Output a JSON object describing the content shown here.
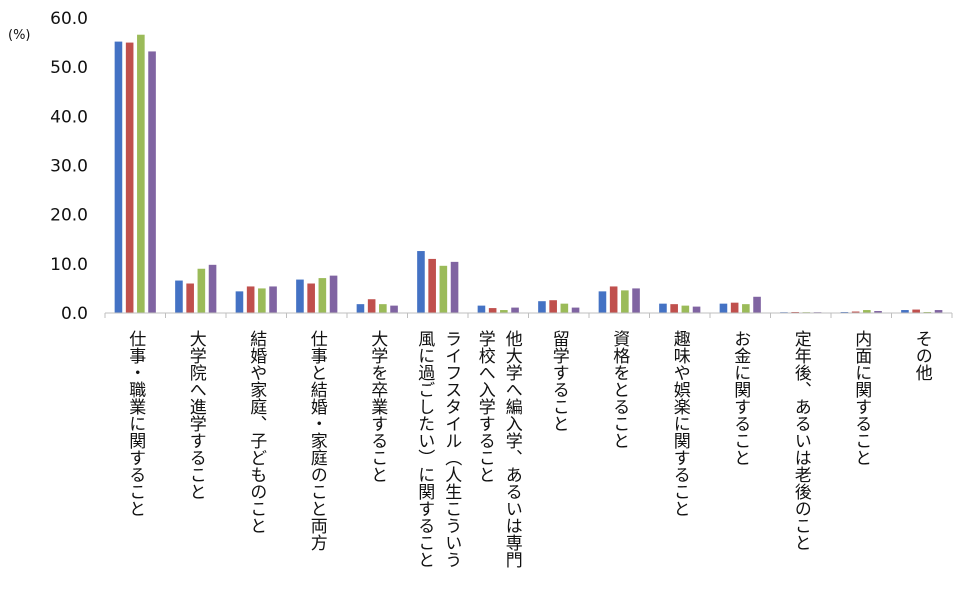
{
  "chart_data": {
    "type": "bar",
    "unit_label": "(%)",
    "ylim": [
      0,
      60
    ],
    "y_ticks": [
      "0.0",
      "10.0",
      "20.0",
      "30.0",
      "40.0",
      "50.0",
      "60.0"
    ],
    "grid": false,
    "legend": "none",
    "categories": [
      [
        "仕事・職業に関すること"
      ],
      [
        "大学院へ進学すること"
      ],
      [
        "結婚や家庭、子どものこと"
      ],
      [
        "仕事と結婚・家庭のこと両方"
      ],
      [
        "大学を卒業すること"
      ],
      [
        "ライフスタイル（人生こういう",
        "風に過ごしたい）に関すること"
      ],
      [
        "他大学へ編入学、あるいは専門",
        "学校へ入学すること"
      ],
      [
        "留学すること"
      ],
      [
        "資格をとること"
      ],
      [
        "趣味や娯楽に関すること"
      ],
      [
        "お金に関すること"
      ],
      [
        "定年後、あるいは老後のこと"
      ],
      [
        "内面に関すること"
      ],
      [
        "その他"
      ]
    ],
    "series": [
      {
        "color": "#4472C4",
        "values": [
          55.2,
          6.6,
          4.4,
          6.8,
          1.8,
          12.6,
          1.5,
          2.4,
          4.4,
          1.9,
          1.9,
          0.1,
          0.2,
          0.6
        ]
      },
      {
        "color": "#C0504D",
        "values": [
          55.0,
          6.0,
          5.4,
          6.0,
          2.8,
          11.0,
          1.0,
          2.6,
          5.4,
          1.8,
          2.1,
          0.2,
          0.3,
          0.7
        ]
      },
      {
        "color": "#9BBB59",
        "values": [
          56.6,
          9.0,
          5.0,
          7.1,
          1.8,
          9.6,
          0.6,
          1.9,
          4.6,
          1.5,
          1.8,
          0.1,
          0.6,
          0.2
        ]
      },
      {
        "color": "#8064A2",
        "values": [
          53.2,
          9.8,
          5.4,
          7.6,
          1.5,
          10.4,
          1.1,
          1.1,
          5.0,
          1.3,
          3.3,
          0.1,
          0.4,
          0.6
        ]
      }
    ]
  }
}
